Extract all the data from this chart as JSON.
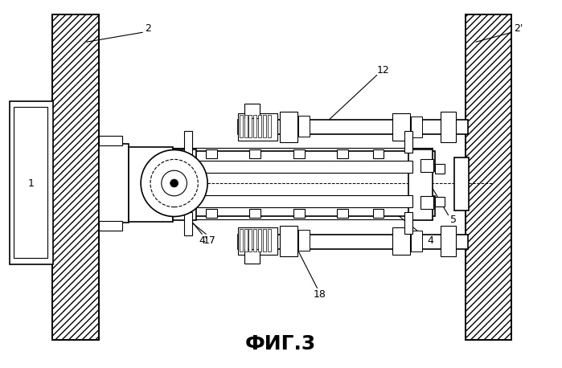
{
  "title": "ФИГ.3",
  "bg_color": "#ffffff",
  "line_color": "#000000",
  "fig_width": 6.99,
  "fig_height": 4.58,
  "dpi": 100,
  "lw_wall": 1.4,
  "lw_main": 1.2,
  "lw_thin": 0.8,
  "label_fs": 9
}
